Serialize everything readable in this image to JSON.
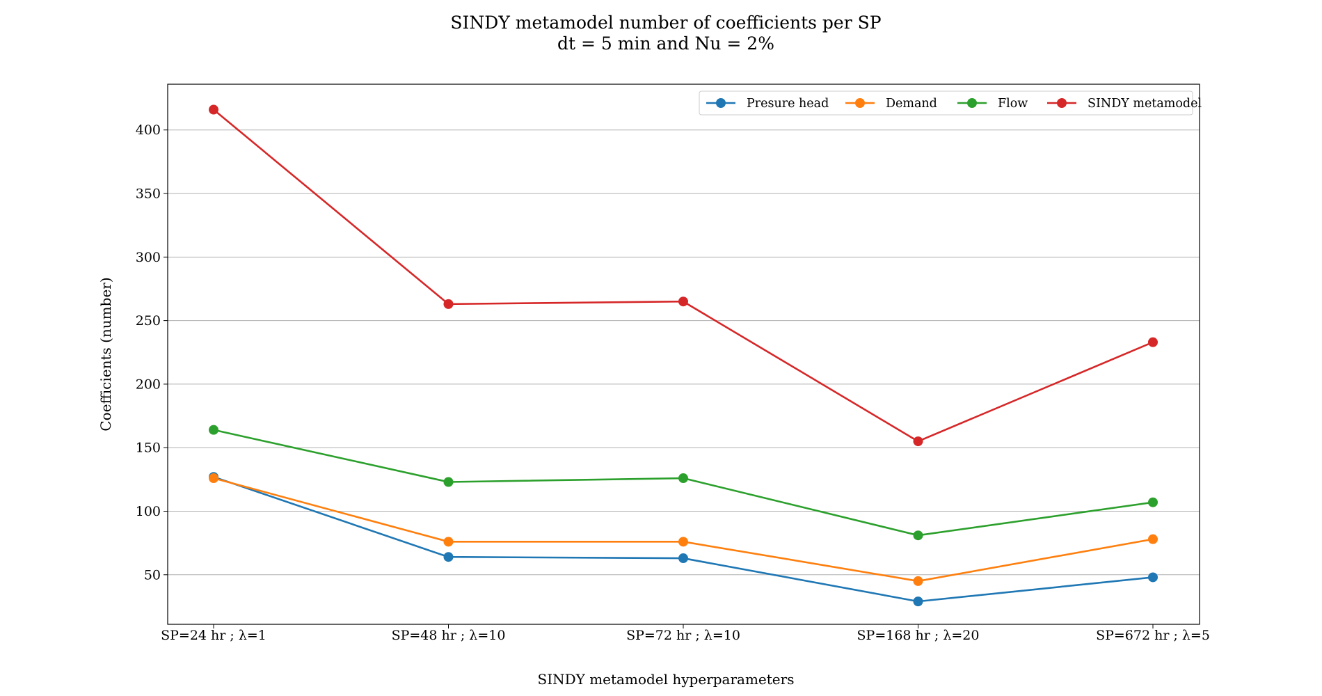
{
  "chart_data": {
    "type": "line",
    "title": "SINDY metamodel number of coefficients per SP",
    "subtitle": "dt = 5 min and Nu = 2%",
    "xlabel": "SINDY metamodel hyperparameters",
    "ylabel": "Coefficients (number)",
    "categories": [
      "SP=24 hr ; λ=1",
      "SP=48 hr ; λ=10",
      "SP=72 hr ; λ=10",
      "SP=168 hr ; λ=20",
      "SP=672 hr ; λ=5"
    ],
    "ylim": [
      11,
      436
    ],
    "yticks": [
      50,
      100,
      150,
      200,
      250,
      300,
      350,
      400
    ],
    "grid": "horizontal",
    "legend_position": "top-right",
    "series": [
      {
        "name": "Presure head",
        "color": "#1f77b4",
        "values": [
          127,
          64,
          63,
          29,
          48
        ]
      },
      {
        "name": "Demand",
        "color": "#ff7f0e",
        "values": [
          126,
          76,
          76,
          45,
          78
        ]
      },
      {
        "name": "Flow",
        "color": "#2ca02c",
        "values": [
          164,
          123,
          126,
          81,
          107
        ]
      },
      {
        "name": "SINDY metamodel",
        "color": "#d62728",
        "values": [
          416,
          263,
          265,
          155,
          233
        ]
      }
    ]
  }
}
